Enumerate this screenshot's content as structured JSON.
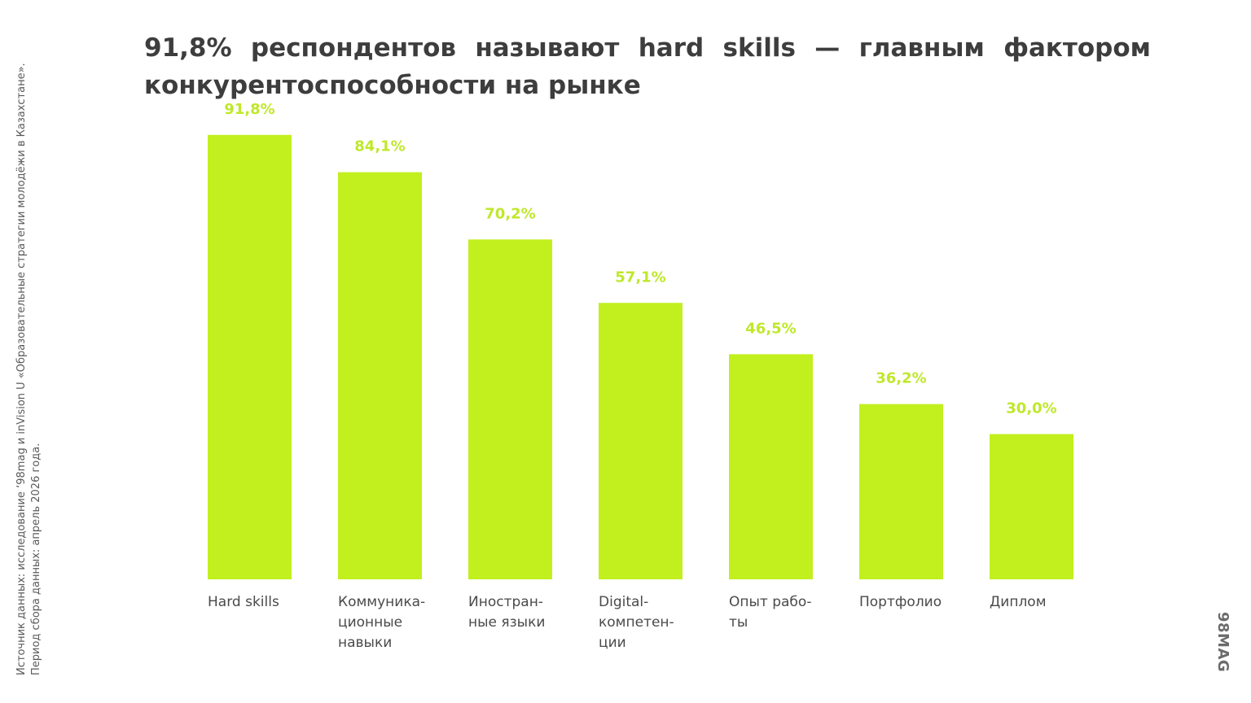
{
  "title": "91,8% респондентов называют hard skills — главным фактором конкурентоспособности на рынке",
  "source": "Источник данных: исследование ‘98mag и inVision U «Образовательные стратегии молодёжи в Казахстане». Период сбора данных: апрель 2026 года.",
  "logo": "98MAG",
  "colors": {
    "bar": "#c1f01e",
    "value_label": "#bfe82a",
    "title": "#3d3d3d",
    "axis_label": "#4a4a4a"
  },
  "chart_data": {
    "type": "bar",
    "title": "91,8% респондентов называют hard skills — главным фактором конкурентоспособности на рынке",
    "categories": [
      "Hard skills",
      "Коммуника-ционные навыки",
      "Иностран-ные языки",
      "Digital-компетен-ции",
      "Опыт работы",
      "Портфолио",
      "Диплом"
    ],
    "category_lines": [
      [
        "Hard skills"
      ],
      [
        "Коммуника-",
        "ционные",
        "навыки"
      ],
      [
        "Иностран-",
        "ные языки"
      ],
      [
        "Digital-",
        "компетен-",
        "ции"
      ],
      [
        "Опыт  рабо-",
        "ты"
      ],
      [
        "Портфолио"
      ],
      [
        "Диплом"
      ]
    ],
    "values": [
      91.8,
      84.1,
      70.2,
      57.1,
      46.5,
      36.2,
      30.0
    ],
    "value_labels": [
      "91,8%",
      "84,1%",
      "70,2%",
      "57,1%",
      "46,5%",
      "36,2%",
      "30,0%"
    ],
    "unit": "%",
    "xlabel": "",
    "ylabel": "",
    "ylim": [
      0,
      100
    ],
    "grid": false,
    "legend": "none"
  }
}
